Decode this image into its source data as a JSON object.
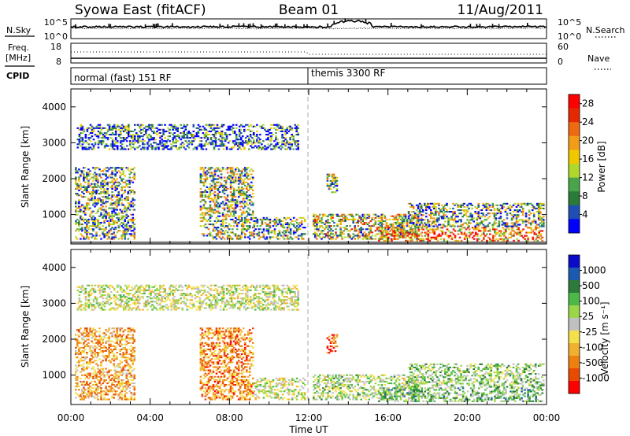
{
  "header": {
    "station": "Syowa East (fitACF)",
    "beam": "Beam 01",
    "date": "11/Aug/2011"
  },
  "left_labels": {
    "nsky": "N.Sky",
    "freq_line1": "Freq.",
    "freq_line2": "[MHz]",
    "cpid": "CPID"
  },
  "right_labels": {
    "nsearch": "N.Search",
    "nave": "Nave"
  },
  "noise_panel": {
    "left_ticks": [
      "10^5",
      "10^0"
    ],
    "right_ticks": [
      "10^5",
      "10^0"
    ]
  },
  "freq_panel": {
    "left_ticks": [
      "18",
      "8"
    ],
    "right_ticks": [
      "60",
      "0"
    ]
  },
  "cpid_panel": {
    "modes": [
      {
        "label": "normal (fast) 151 RF",
        "start_hour": 0
      },
      {
        "label": "themis 3300 RF",
        "start_hour": 12
      }
    ]
  },
  "colors": {
    "power": [
      "#0000ff",
      "#1f4fb4",
      "#2a7a3a",
      "#4aa54a",
      "#b0d82c",
      "#f0c800",
      "#f39c18",
      "#ee6a10",
      "#e42800",
      "#ff0000"
    ],
    "velocity": [
      "#0a0ac8",
      "#1a5ab0",
      "#2d7a3a",
      "#4cb848",
      "#9bd64a",
      "#c0c0c0",
      "#f3e04a",
      "#f0b030",
      "#ee8010",
      "#e84a00",
      "#ff0000"
    ]
  },
  "chart_data": [
    {
      "type": "heatmap",
      "title": "",
      "xlabel": "",
      "ylabel": "Slant Range [km]",
      "x_ticks": [
        "00:00",
        "04:00",
        "08:00",
        "12:00",
        "16:00",
        "20:00",
        "00:00"
      ],
      "y_ticks": [
        "1000",
        "2000",
        "3000",
        "4000"
      ],
      "xlim_hours": [
        0,
        24
      ],
      "ylim_km": [
        180,
        4500
      ],
      "colorbar": {
        "label": "Power [dB]",
        "ticks": [
          "4",
          "8",
          "12",
          "16",
          "20",
          "24",
          "28"
        ],
        "range": [
          0,
          30
        ]
      },
      "echo_regions": [
        {
          "t0": 0.2,
          "t1": 3.2,
          "r0": 300,
          "r1": 2300,
          "level": 0.35
        },
        {
          "t0": 6.5,
          "t1": 9.2,
          "r0": 300,
          "r1": 2300,
          "level": 0.4
        },
        {
          "t0": 9.2,
          "t1": 11.8,
          "r0": 300,
          "r1": 900,
          "level": 0.35
        },
        {
          "t0": 12.2,
          "t1": 17.5,
          "r0": 300,
          "r1": 1000,
          "level": 0.45
        },
        {
          "t0": 15.5,
          "t1": 23.8,
          "r0": 250,
          "r1": 650,
          "level": 0.7
        },
        {
          "t0": 17.0,
          "t1": 23.8,
          "r0": 650,
          "r1": 1300,
          "level": 0.35
        },
        {
          "t0": 12.9,
          "t1": 13.4,
          "r0": 1600,
          "r1": 2100,
          "level": 0.4
        },
        {
          "t0": 0.3,
          "t1": 11.5,
          "r0": 2800,
          "r1": 3500,
          "level": 0.2
        }
      ]
    },
    {
      "type": "heatmap",
      "title": "",
      "xlabel": "Time UT",
      "ylabel": "Slant Range [km]",
      "x_ticks": [
        "00:00",
        "04:00",
        "08:00",
        "12:00",
        "16:00",
        "20:00",
        "00:00"
      ],
      "y_ticks": [
        "1000",
        "2000",
        "3000",
        "4000"
      ],
      "xlim_hours": [
        0,
        24
      ],
      "ylim_km": [
        180,
        4500
      ],
      "colorbar": {
        "label": "Velocity [m s⁻¹]",
        "ticks": [
          "1000",
          "500",
          "100",
          "25",
          "-25",
          "-100",
          "-500",
          "-1000"
        ],
        "range": [
          -1200,
          1200
        ]
      },
      "echo_regions": [
        {
          "t0": 0.2,
          "t1": 3.2,
          "r0": 300,
          "r1": 2300,
          "level": -0.4
        },
        {
          "t0": 6.5,
          "t1": 9.2,
          "r0": 300,
          "r1": 2300,
          "level": -0.5
        },
        {
          "t0": 9.2,
          "t1": 11.8,
          "r0": 300,
          "r1": 900,
          "level": 0.0
        },
        {
          "t0": 12.2,
          "t1": 17.5,
          "r0": 300,
          "r1": 1000,
          "level": 0.1
        },
        {
          "t0": 15.5,
          "t1": 23.8,
          "r0": 250,
          "r1": 650,
          "level": 0.3
        },
        {
          "t0": 17.0,
          "t1": 23.8,
          "r0": 650,
          "r1": 1300,
          "level": 0.2
        },
        {
          "t0": 12.9,
          "t1": 13.4,
          "r0": 1600,
          "r1": 2100,
          "level": -0.7
        },
        {
          "t0": 0.3,
          "t1": 11.5,
          "r0": 2800,
          "r1": 3500,
          "level": 0.0
        }
      ]
    }
  ]
}
